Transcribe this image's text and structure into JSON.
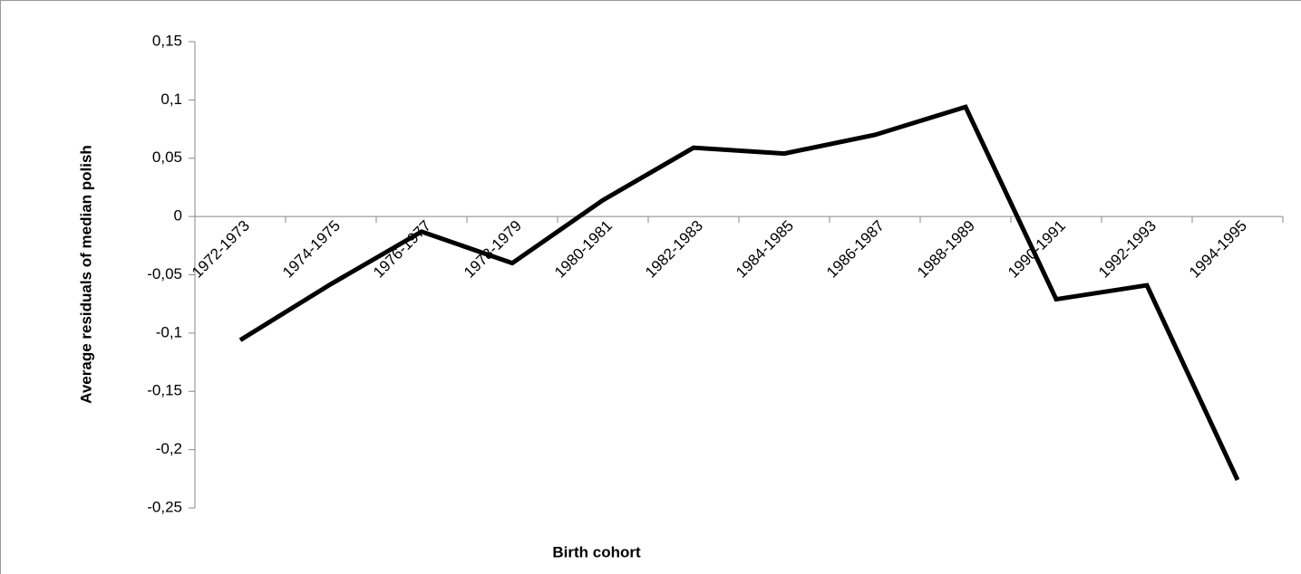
{
  "chart_data": {
    "type": "line",
    "x_label": "Birth cohort",
    "y_label": "Average residuals of median polish",
    "categories": [
      "1972-1973",
      "1974-1975",
      "1976-1977",
      "1978-1979",
      "1980-1981",
      "1982-1983",
      "1984-1985",
      "1986-1987",
      "1988-1989",
      "1990-1991",
      "1992-1993",
      "1994-1995"
    ],
    "values": [
      -0.106,
      -0.058,
      -0.013,
      -0.04,
      0.014,
      0.059,
      0.054,
      0.07,
      0.094,
      -0.071,
      -0.059,
      -0.226
    ],
    "color": "#000000",
    "ylim": [
      -0.25,
      0.15
    ],
    "yticks": [
      {
        "value": -0.25,
        "label": "-0,25"
      },
      {
        "value": -0.2,
        "label": "-0,2"
      },
      {
        "value": -0.15,
        "label": "-0,15"
      },
      {
        "value": -0.1,
        "label": "-0,1"
      },
      {
        "value": -0.05,
        "label": "-0,05"
      },
      0,
      {
        "value": 0.05,
        "label": "0,05"
      },
      {
        "value": 0.1,
        "label": "0,1"
      },
      {
        "value": 0.15,
        "label": "0,15"
      }
    ],
    "grid": false
  }
}
